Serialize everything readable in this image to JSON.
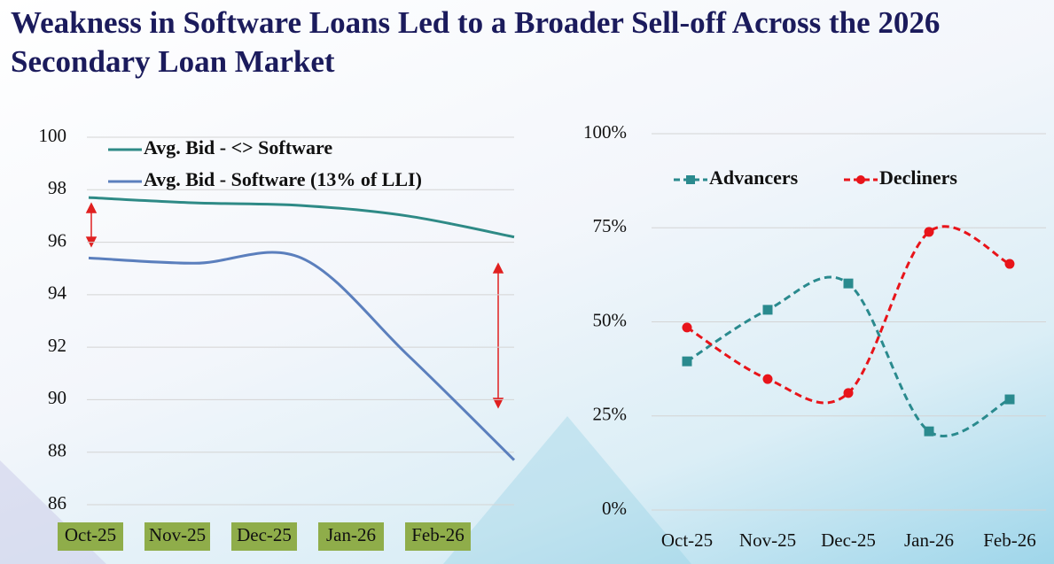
{
  "title": "Weakness in Software Loans Led to a Broader Sell-off Across the 2026 Secondary Loan Market",
  "chart_data": [
    {
      "type": "line",
      "categories": [
        "Oct-25",
        "Nov-25",
        "Dec-25",
        "Jan-26",
        "Feb-26"
      ],
      "series": [
        {
          "name": "Avg. Bid - <> Software",
          "color": "#2e8a86",
          "values": [
            97.7,
            97.5,
            97.4,
            97.0,
            96.2
          ]
        },
        {
          "name": "Avg. Bid - Software (13% of LLI)",
          "color": "#5b7fbd",
          "values": [
            95.4,
            95.2,
            95.4,
            91.7,
            87.7
          ]
        }
      ],
      "ylim": [
        86,
        100
      ],
      "yticks": [
        86,
        88,
        90,
        92,
        94,
        96,
        98,
        100
      ],
      "grid": true,
      "legend": "top-left",
      "smooth": true,
      "category_label_background": "#8fad4a"
    },
    {
      "type": "line",
      "categories": [
        "Oct-25",
        "Nov-25",
        "Dec-25",
        "Jan-26",
        "Feb-26"
      ],
      "series": [
        {
          "name": "Advancers",
          "color": "#2a8a8e",
          "marker": "square",
          "dashed": true,
          "values": [
            39.5,
            53.2,
            60.2,
            20.9,
            29.4
          ]
        },
        {
          "name": "Decliners",
          "color": "#e8141a",
          "marker": "circle",
          "dashed": true,
          "values": [
            48.5,
            34.8,
            31.1,
            73.9,
            65.4
          ]
        }
      ],
      "ylim": [
        0,
        100
      ],
      "yticks": [
        {
          "value": 0,
          "label": "0%"
        },
        {
          "value": 25,
          "label": "25%"
        },
        {
          "value": 50,
          "label": "50%"
        },
        {
          "value": 75,
          "label": "75%"
        },
        {
          "value": 100,
          "label": "100%"
        }
      ],
      "grid": true,
      "legend": "top",
      "smooth": true
    }
  ]
}
